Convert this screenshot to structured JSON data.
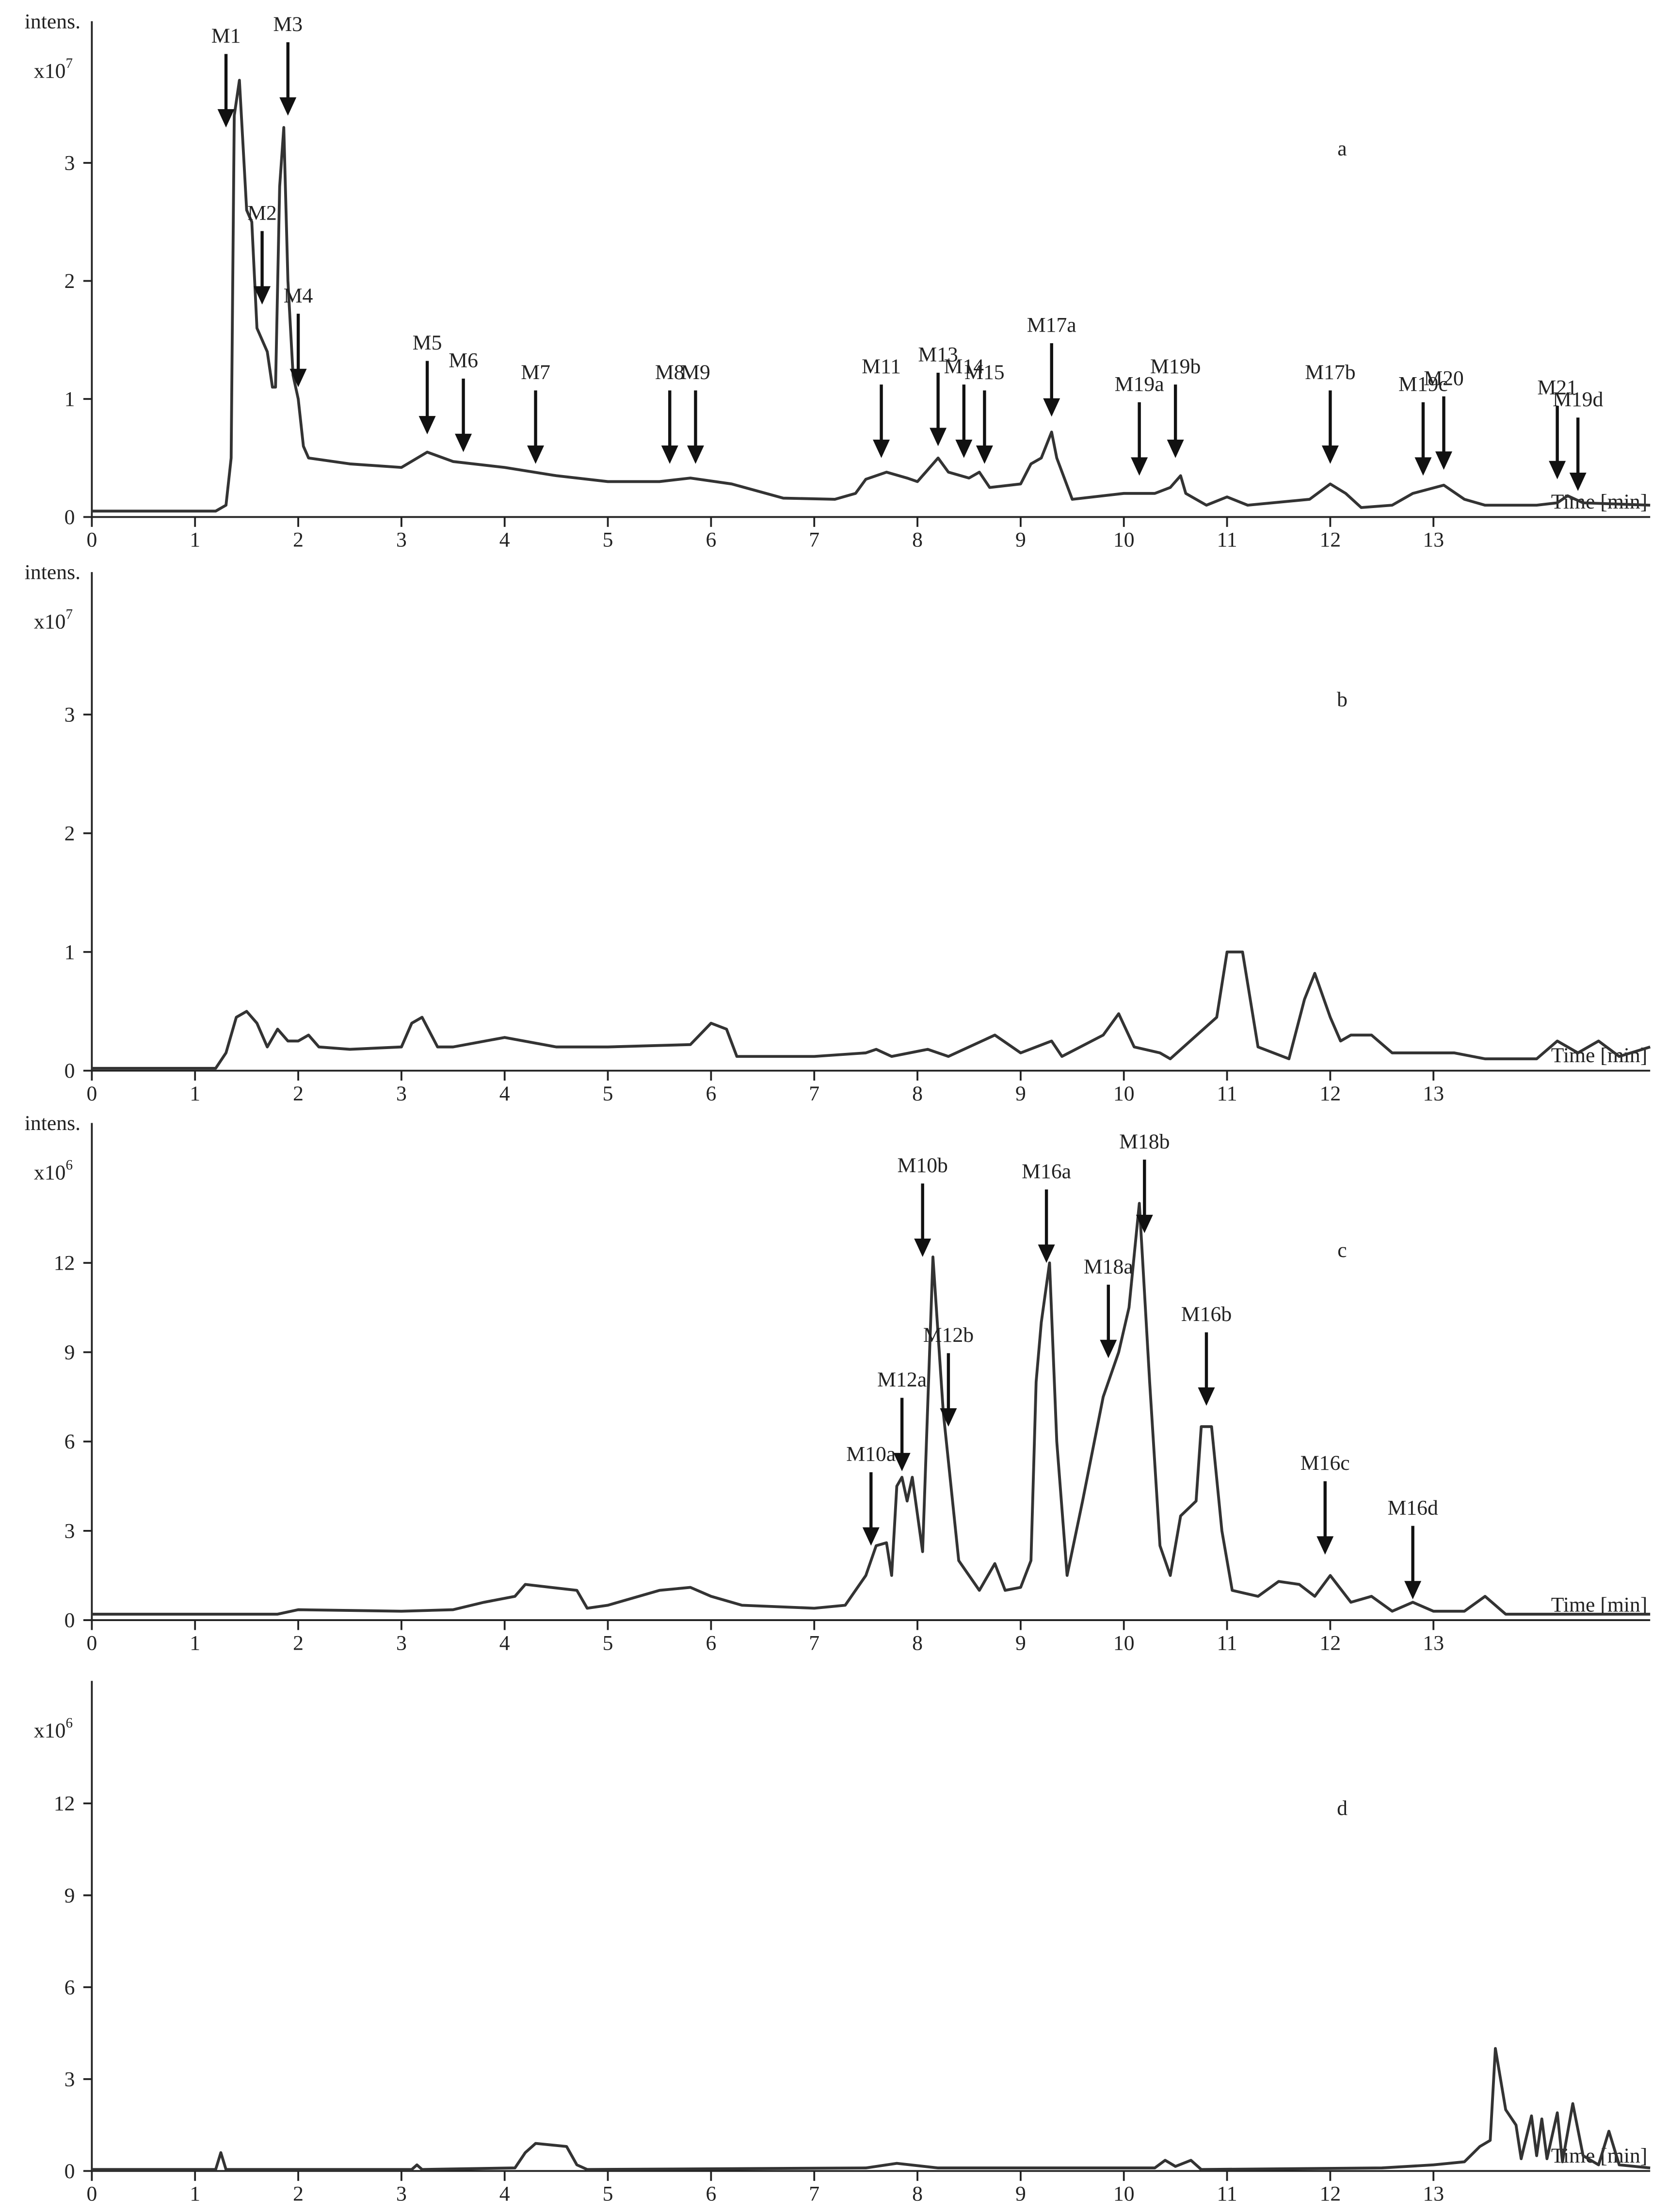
{
  "chart_data": [
    {
      "type": "line",
      "label": "a",
      "y_label": "intens.",
      "y_scale_label": "x10",
      "y_scale_exponent": "7",
      "x_label": "Time [min]",
      "color": "#333333",
      "xlim": [
        0,
        15.1
      ],
      "xticks": [
        0,
        1,
        2,
        3,
        4,
        5,
        6,
        7,
        8,
        9,
        10,
        11,
        12,
        13
      ],
      "ylim": [
        0,
        4.2
      ],
      "yticks": [
        0,
        1,
        2,
        3
      ],
      "x": [
        0,
        1.2,
        1.3,
        1.35,
        1.38,
        1.43,
        1.5,
        1.55,
        1.6,
        1.7,
        1.75,
        1.78,
        1.82,
        1.86,
        1.9,
        1.95,
        2.0,
        2.05,
        2.1,
        2.5,
        3.0,
        3.25,
        3.5,
        4.0,
        4.5,
        5.0,
        5.5,
        5.8,
        6.2,
        6.7,
        7.2,
        7.4,
        7.5,
        7.7,
        7.9,
        8.0,
        8.2,
        8.3,
        8.5,
        8.6,
        8.7,
        9.0,
        9.1,
        9.2,
        9.3,
        9.35,
        9.5,
        10.0,
        10.3,
        10.45,
        10.55,
        10.6,
        10.8,
        11.0,
        11.2,
        11.8,
        12.0,
        12.15,
        12.3,
        12.6,
        12.8,
        13.1,
        13.3,
        13.5,
        14.0,
        14.2,
        14.3,
        14.45,
        15.1
      ],
      "values": [
        0.05,
        0.05,
        0.1,
        0.5,
        3.4,
        3.7,
        2.6,
        2.5,
        1.6,
        1.4,
        1.1,
        1.1,
        2.8,
        3.3,
        2.0,
        1.2,
        1.0,
        0.6,
        0.5,
        0.45,
        0.42,
        0.55,
        0.47,
        0.42,
        0.35,
        0.3,
        0.3,
        0.33,
        0.28,
        0.16,
        0.15,
        0.2,
        0.32,
        0.38,
        0.33,
        0.3,
        0.5,
        0.38,
        0.33,
        0.38,
        0.25,
        0.28,
        0.45,
        0.5,
        0.72,
        0.5,
        0.15,
        0.2,
        0.2,
        0.25,
        0.35,
        0.2,
        0.1,
        0.17,
        0.1,
        0.15,
        0.28,
        0.2,
        0.08,
        0.1,
        0.2,
        0.27,
        0.15,
        0.1,
        0.1,
        0.12,
        0.18,
        0.12,
        0.1
      ],
      "annotations": [
        {
          "text": "M1",
          "x": 1.3,
          "y": 3.3
        },
        {
          "text": "M2",
          "x": 1.65,
          "y": 1.8
        },
        {
          "text": "M3",
          "x": 1.9,
          "y": 3.4
        },
        {
          "text": "M4",
          "x": 2.0,
          "y": 1.1
        },
        {
          "text": "M5",
          "x": 3.25,
          "y": 0.7
        },
        {
          "text": "M6",
          "x": 3.6,
          "y": 0.55
        },
        {
          "text": "M7",
          "x": 4.3,
          "y": 0.45
        },
        {
          "text": "M8",
          "x": 5.6,
          "y": 0.45
        },
        {
          "text": "M9",
          "x": 5.85,
          "y": 0.45
        },
        {
          "text": "M11",
          "x": 7.65,
          "y": 0.5
        },
        {
          "text": "M13",
          "x": 8.2,
          "y": 0.6
        },
        {
          "text": "M14",
          "x": 8.45,
          "y": 0.5
        },
        {
          "text": "M15",
          "x": 8.65,
          "y": 0.45
        },
        {
          "text": "M17a",
          "x": 9.3,
          "y": 0.85
        },
        {
          "text": "M19a",
          "x": 10.15,
          "y": 0.35
        },
        {
          "text": "M19b",
          "x": 10.5,
          "y": 0.5
        },
        {
          "text": "M17b",
          "x": 12.0,
          "y": 0.45
        },
        {
          "text": "M19c",
          "x": 12.9,
          "y": 0.35
        },
        {
          "text": "M20",
          "x": 13.1,
          "y": 0.4
        },
        {
          "text": "M21",
          "x": 14.2,
          "y": 0.32
        },
        {
          "text": "M19d",
          "x": 14.4,
          "y": 0.22
        }
      ]
    },
    {
      "type": "line",
      "label": "b",
      "y_label": "intens.",
      "y_scale_label": "x10",
      "y_scale_exponent": "7",
      "x_label": "Time [min]",
      "color": "#333333",
      "xlim": [
        0,
        15.1
      ],
      "xticks": [
        0,
        1,
        2,
        3,
        4,
        5,
        6,
        7,
        8,
        9,
        10,
        11,
        12,
        13
      ],
      "ylim": [
        0,
        4.2
      ],
      "yticks": [
        0,
        1,
        2,
        3
      ],
      "x": [
        0,
        1.2,
        1.3,
        1.4,
        1.5,
        1.6,
        1.7,
        1.8,
        1.9,
        2.0,
        2.1,
        2.2,
        2.5,
        3.0,
        3.1,
        3.2,
        3.35,
        3.5,
        4.0,
        4.5,
        5.0,
        5.8,
        6.0,
        6.15,
        6.25,
        7.0,
        7.5,
        7.6,
        7.75,
        8.1,
        8.3,
        8.75,
        9.0,
        9.3,
        9.4,
        9.8,
        9.95,
        10.1,
        10.35,
        10.45,
        10.9,
        11.0,
        11.15,
        11.3,
        11.6,
        11.75,
        11.85,
        12.0,
        12.1,
        12.2,
        12.4,
        12.6,
        13.2,
        13.5,
        14.0,
        14.2,
        14.4,
        14.6,
        14.8,
        15.1
      ],
      "values": [
        0.02,
        0.02,
        0.15,
        0.45,
        0.5,
        0.4,
        0.2,
        0.35,
        0.25,
        0.25,
        0.3,
        0.2,
        0.18,
        0.2,
        0.4,
        0.45,
        0.2,
        0.2,
        0.28,
        0.2,
        0.2,
        0.22,
        0.4,
        0.35,
        0.12,
        0.12,
        0.15,
        0.18,
        0.12,
        0.18,
        0.12,
        0.3,
        0.15,
        0.25,
        0.12,
        0.3,
        0.48,
        0.2,
        0.15,
        0.1,
        0.45,
        1.0,
        1.0,
        0.2,
        0.1,
        0.6,
        0.82,
        0.45,
        0.25,
        0.3,
        0.3,
        0.15,
        0.15,
        0.1,
        0.1,
        0.25,
        0.15,
        0.25,
        0.12,
        0.2
      ],
      "annotations": []
    },
    {
      "type": "line",
      "label": "c",
      "y_label": "intens.",
      "y_scale_label": "x10",
      "y_scale_exponent": "6",
      "x_label": "Time [min]",
      "color": "#333333",
      "xlim": [
        0,
        15.1
      ],
      "xticks": [
        0,
        1,
        2,
        3,
        4,
        5,
        6,
        7,
        8,
        9,
        10,
        11,
        12,
        13
      ],
      "ylim": [
        0,
        16.7
      ],
      "yticks": [
        0,
        3,
        6,
        9,
        12
      ],
      "x": [
        0,
        1.8,
        2.0,
        3.0,
        3.5,
        3.8,
        4.1,
        4.2,
        4.7,
        4.8,
        5.0,
        5.5,
        5.8,
        6.0,
        6.3,
        7.0,
        7.3,
        7.5,
        7.6,
        7.7,
        7.75,
        7.8,
        7.85,
        7.9,
        7.95,
        8.05,
        8.15,
        8.25,
        8.4,
        8.6,
        8.75,
        8.85,
        9.0,
        9.1,
        9.15,
        9.2,
        9.28,
        9.35,
        9.45,
        9.6,
        9.8,
        9.95,
        10.05,
        10.15,
        10.25,
        10.35,
        10.45,
        10.55,
        10.7,
        10.75,
        10.85,
        10.95,
        11.05,
        11.3,
        11.5,
        11.7,
        11.85,
        12.0,
        12.2,
        12.4,
        12.6,
        12.8,
        13.0,
        13.3,
        13.5,
        13.7,
        15.1
      ],
      "values": [
        0.2,
        0.2,
        0.35,
        0.3,
        0.35,
        0.6,
        0.8,
        1.2,
        1.0,
        0.4,
        0.5,
        1.0,
        1.1,
        0.8,
        0.5,
        0.4,
        0.5,
        1.5,
        2.5,
        2.6,
        1.5,
        4.5,
        4.8,
        4.0,
        4.8,
        2.3,
        12.2,
        7.0,
        2.0,
        1.0,
        1.9,
        1.0,
        1.1,
        2.0,
        8.0,
        10,
        12.0,
        6.0,
        1.5,
        4.0,
        7.5,
        9.0,
        10.5,
        14.0,
        8.0,
        2.5,
        1.5,
        3.5,
        4.0,
        6.5,
        6.5,
        3.0,
        1.0,
        0.8,
        1.3,
        1.2,
        0.8,
        1.5,
        0.6,
        0.8,
        0.3,
        0.6,
        0.3,
        0.3,
        0.8,
        0.2,
        0.2
      ],
      "annotations": [
        {
          "text": "M10a",
          "x": 7.55,
          "y": 2.5
        },
        {
          "text": "M10b",
          "x": 8.05,
          "y": 12.2
        },
        {
          "text": "M12a",
          "x": 7.85,
          "y": 5.0
        },
        {
          "text": "M12b",
          "x": 8.3,
          "y": 6.5
        },
        {
          "text": "M16a",
          "x": 9.25,
          "y": 12.0
        },
        {
          "text": "M18a",
          "x": 9.85,
          "y": 8.8
        },
        {
          "text": "M18b",
          "x": 10.2,
          "y": 13.0
        },
        {
          "text": "M16b",
          "x": 10.8,
          "y": 7.2
        },
        {
          "text": "M16c",
          "x": 11.95,
          "y": 2.2
        },
        {
          "text": "M16d",
          "x": 12.8,
          "y": 0.7
        }
      ]
    },
    {
      "type": "line",
      "label": "d",
      "y_scale_label": "x10",
      "y_scale_exponent": "6",
      "x_label": "Time [min]",
      "color": "#333333",
      "xlim": [
        0,
        15.1
      ],
      "xticks": [
        0,
        1,
        2,
        3,
        4,
        5,
        6,
        7,
        8,
        9,
        10,
        11,
        12,
        13
      ],
      "ylim": [
        0,
        16
      ],
      "yticks": [
        0,
        3,
        6,
        9,
        12
      ],
      "x": [
        0,
        1.2,
        1.25,
        1.3,
        3.1,
        3.15,
        3.2,
        4.1,
        4.2,
        4.3,
        4.6,
        4.7,
        4.8,
        7.5,
        7.8,
        8.2,
        10.3,
        10.4,
        10.5,
        10.65,
        10.75,
        12.5,
        13.0,
        13.3,
        13.45,
        13.55,
        13.6,
        13.7,
        13.8,
        13.85,
        13.95,
        14.0,
        14.05,
        14.1,
        14.2,
        14.25,
        14.35,
        14.45,
        14.6,
        14.7,
        14.8,
        15.1
      ],
      "values": [
        0.05,
        0.05,
        0.6,
        0.05,
        0.05,
        0.2,
        0.05,
        0.1,
        0.6,
        0.9,
        0.8,
        0.2,
        0.05,
        0.1,
        0.25,
        0.1,
        0.1,
        0.35,
        0.15,
        0.35,
        0.05,
        0.1,
        0.2,
        0.3,
        0.8,
        1.0,
        4.0,
        2.0,
        1.5,
        0.4,
        1.8,
        0.5,
        1.7,
        0.4,
        1.9,
        0.3,
        2.2,
        0.5,
        0.2,
        1.3,
        0.2,
        0.1
      ],
      "annotations": []
    }
  ]
}
